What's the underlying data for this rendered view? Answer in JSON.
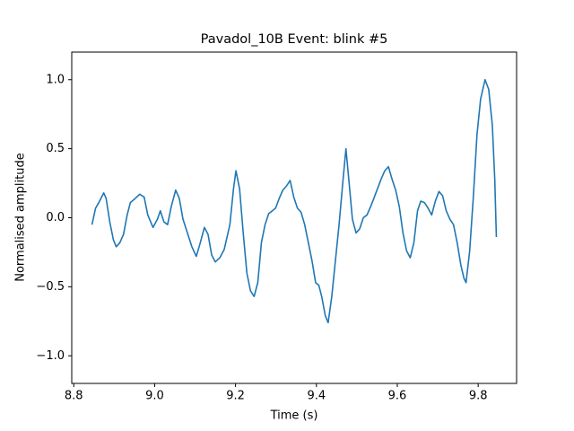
{
  "chart_data": {
    "type": "line",
    "title": "Pavadol_10B Event: blink #5",
    "xlabel": "Time (s)",
    "ylabel": "Normalised amplitude",
    "x": [
      8.845,
      8.854,
      8.862,
      8.874,
      8.88,
      8.889,
      8.898,
      8.905,
      8.914,
      8.923,
      8.932,
      8.94,
      8.952,
      8.963,
      8.974,
      8.983,
      8.996,
      9.007,
      9.014,
      9.023,
      9.032,
      9.041,
      9.052,
      9.061,
      9.07,
      9.081,
      9.092,
      9.103,
      9.112,
      9.123,
      9.132,
      9.141,
      9.15,
      9.161,
      9.172,
      9.186,
      9.195,
      9.201,
      9.21,
      9.219,
      9.228,
      9.237,
      9.246,
      9.255,
      9.264,
      9.273,
      9.282,
      9.291,
      9.299,
      9.308,
      9.317,
      9.326,
      9.335,
      9.344,
      9.353,
      9.362,
      9.371,
      9.38,
      9.389,
      9.398,
      9.406,
      9.413,
      9.422,
      9.429,
      9.438,
      9.447,
      9.456,
      9.466,
      9.473,
      9.48,
      9.489,
      9.498,
      9.507,
      9.516,
      9.525,
      9.534,
      9.542,
      9.551,
      9.56,
      9.569,
      9.578,
      9.587,
      9.596,
      9.605,
      9.614,
      9.623,
      9.632,
      9.641,
      9.65,
      9.658,
      9.667,
      9.676,
      9.685,
      9.694,
      9.703,
      9.712,
      9.721,
      9.73,
      9.739,
      9.748,
      9.757,
      9.765,
      9.77,
      9.779,
      9.788,
      9.797,
      9.806,
      9.817,
      9.826,
      9.835,
      9.841,
      9.845
    ],
    "series": [
      {
        "color": "#1f77b4",
        "values": [
          -0.05,
          0.07,
          0.11,
          0.18,
          0.14,
          -0.03,
          -0.16,
          -0.21,
          -0.18,
          -0.12,
          0.02,
          0.11,
          0.14,
          0.17,
          0.15,
          0.02,
          -0.07,
          -0.01,
          0.05,
          -0.03,
          -0.05,
          0.08,
          0.2,
          0.14,
          -0.01,
          -0.11,
          -0.21,
          -0.28,
          -0.19,
          -0.07,
          -0.12,
          -0.27,
          -0.32,
          -0.29,
          -0.23,
          -0.05,
          0.21,
          0.34,
          0.21,
          -0.11,
          -0.4,
          -0.53,
          -0.57,
          -0.47,
          -0.18,
          -0.05,
          0.03,
          0.05,
          0.07,
          0.14,
          0.2,
          0.23,
          0.27,
          0.15,
          0.07,
          0.04,
          -0.05,
          -0.18,
          -0.31,
          -0.47,
          -0.49,
          -0.57,
          -0.71,
          -0.76,
          -0.57,
          -0.31,
          -0.05,
          0.28,
          0.5,
          0.28,
          -0.01,
          -0.11,
          -0.08,
          0,
          0.02,
          0.08,
          0.14,
          0.21,
          0.28,
          0.34,
          0.37,
          0.28,
          0.2,
          0.08,
          -0.11,
          -0.24,
          -0.29,
          -0.18,
          0.05,
          0.12,
          0.11,
          0.07,
          0.02,
          0.12,
          0.19,
          0.16,
          0.05,
          -0.01,
          -0.05,
          -0.18,
          -0.34,
          -0.44,
          -0.47,
          -0.24,
          0.15,
          0.6,
          0.86,
          1.0,
          0.93,
          0.67,
          0.28,
          -0.14
        ]
      }
    ],
    "xlim": [
      8.795,
      9.895
    ],
    "ylim": [
      -1.2,
      1.2
    ],
    "xticks": [
      8.8,
      {
        "value": 9.0,
        "label": "9.0"
      },
      9.2,
      9.4,
      9.6,
      9.8
    ],
    "yticks": [
      {
        "value": -1.0,
        "label": "−1.0"
      },
      {
        "value": -0.5,
        "label": "−0.5"
      },
      {
        "value": 0.0,
        "label": "0.0"
      },
      0.5,
      {
        "value": 1.0,
        "label": "1.0"
      }
    ],
    "grid": false
  }
}
